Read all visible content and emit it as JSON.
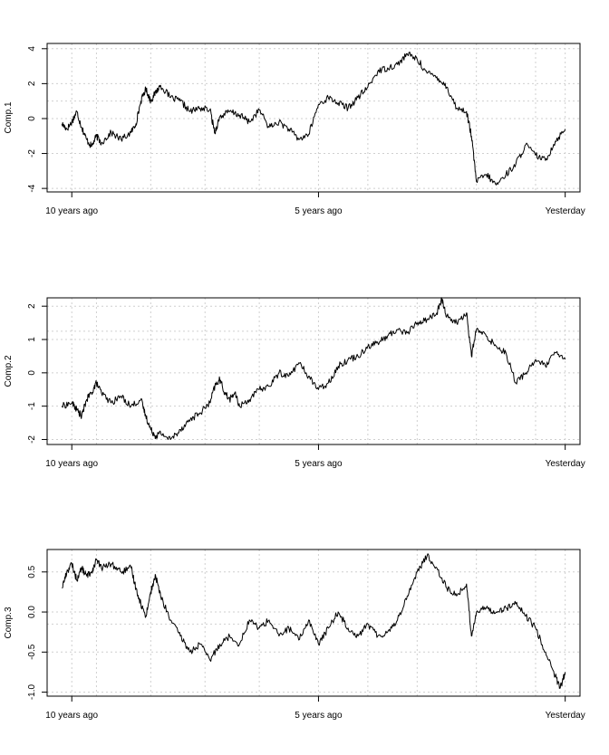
{
  "chart_data": [
    {
      "type": "line",
      "ylabel": "Comp.1",
      "ylim": [
        -4.2,
        4.3
      ],
      "yticks": [
        -4,
        -2,
        0,
        2,
        4
      ],
      "ytick_labels": [
        "-4",
        "-2",
        "0",
        "2",
        "4"
      ],
      "xlim": [
        -0.05,
        1.03
      ],
      "xticks": [
        0,
        0.5,
        1
      ],
      "xtick_labels": [
        "10 years ago",
        "5 years ago",
        "Yesterday"
      ],
      "grid": true,
      "grid_x": [
        0,
        0.05,
        0.16,
        0.27,
        0.38,
        0.5,
        0.6,
        0.7,
        0.82,
        0.94,
        1.0
      ],
      "grid_y": [
        -4,
        -2,
        0,
        1,
        2,
        4
      ],
      "x": [
        -0.02,
        -0.01,
        0.0,
        0.01,
        0.02,
        0.03,
        0.04,
        0.05,
        0.06,
        0.08,
        0.1,
        0.12,
        0.13,
        0.14,
        0.15,
        0.16,
        0.17,
        0.18,
        0.2,
        0.22,
        0.24,
        0.26,
        0.28,
        0.29,
        0.3,
        0.32,
        0.34,
        0.36,
        0.38,
        0.4,
        0.42,
        0.44,
        0.46,
        0.48,
        0.5,
        0.52,
        0.54,
        0.56,
        0.58,
        0.6,
        0.62,
        0.64,
        0.66,
        0.68,
        0.7,
        0.72,
        0.74,
        0.76,
        0.78,
        0.8,
        0.81,
        0.82,
        0.84,
        0.86,
        0.88,
        0.9,
        0.92,
        0.94,
        0.96,
        0.98,
        1.0
      ],
      "y": [
        -0.3,
        -0.6,
        -0.2,
        0.4,
        -0.5,
        -1.2,
        -1.6,
        -1.0,
        -1.4,
        -0.8,
        -1.2,
        -0.8,
        -0.3,
        1.0,
        1.7,
        1.0,
        1.5,
        1.9,
        1.2,
        1.0,
        0.4,
        0.6,
        0.5,
        -0.8,
        0.1,
        0.4,
        0.2,
        -0.2,
        0.5,
        -0.5,
        -0.2,
        -0.6,
        -1.2,
        -0.9,
        0.8,
        1.2,
        0.9,
        0.6,
        1.2,
        1.8,
        2.7,
        2.9,
        3.1,
        3.7,
        3.4,
        2.6,
        2.4,
        1.8,
        0.6,
        0.4,
        -1.0,
        -3.6,
        -3.2,
        -3.8,
        -3.2,
        -2.6,
        -1.5,
        -2.1,
        -2.4,
        -1.3,
        -0.6
      ]
    },
    {
      "type": "line",
      "ylabel": "Comp.2",
      "ylim": [
        -2.15,
        2.25
      ],
      "yticks": [
        -2,
        -1,
        0,
        1,
        2
      ],
      "ytick_labels": [
        "-2",
        "-1",
        "0",
        "1",
        "2"
      ],
      "xlim": [
        -0.05,
        1.03
      ],
      "xticks": [
        0,
        0.5,
        1
      ],
      "xtick_labels": [
        "10 years ago",
        "5 years ago",
        "Yesterday"
      ],
      "grid": true,
      "grid_x": [
        0,
        0.05,
        0.16,
        0.27,
        0.38,
        0.5,
        0.6,
        0.7,
        0.82,
        0.94,
        1.0
      ],
      "grid_y": [
        -2,
        -1,
        0,
        1,
        1.25,
        2
      ],
      "x": [
        -0.02,
        0.0,
        0.01,
        0.02,
        0.03,
        0.04,
        0.05,
        0.06,
        0.08,
        0.1,
        0.12,
        0.14,
        0.15,
        0.16,
        0.17,
        0.18,
        0.2,
        0.22,
        0.24,
        0.26,
        0.28,
        0.29,
        0.3,
        0.31,
        0.32,
        0.33,
        0.34,
        0.36,
        0.38,
        0.4,
        0.42,
        0.44,
        0.46,
        0.48,
        0.5,
        0.52,
        0.54,
        0.56,
        0.58,
        0.6,
        0.62,
        0.64,
        0.66,
        0.68,
        0.7,
        0.72,
        0.74,
        0.75,
        0.76,
        0.78,
        0.8,
        0.81,
        0.82,
        0.84,
        0.86,
        0.88,
        0.9,
        0.92,
        0.94,
        0.96,
        0.98,
        1.0
      ],
      "y": [
        -1.0,
        -0.9,
        -1.1,
        -1.3,
        -0.8,
        -0.6,
        -0.3,
        -0.6,
        -0.9,
        -0.7,
        -1.0,
        -0.8,
        -1.3,
        -1.7,
        -1.9,
        -1.8,
        -2.0,
        -1.7,
        -1.4,
        -1.2,
        -0.9,
        -0.4,
        -0.2,
        -0.6,
        -0.8,
        -0.6,
        -1.0,
        -0.8,
        -0.5,
        -0.4,
        0.0,
        -0.1,
        0.3,
        -0.1,
        -0.5,
        -0.3,
        0.2,
        0.4,
        0.5,
        0.8,
        0.9,
        1.1,
        1.3,
        1.2,
        1.5,
        1.6,
        1.8,
        2.2,
        1.7,
        1.5,
        1.8,
        0.5,
        1.3,
        1.1,
        0.8,
        0.6,
        -0.3,
        0.0,
        0.4,
        0.2,
        0.6,
        0.4
      ]
    },
    {
      "type": "line",
      "ylabel": "Comp.3",
      "ylim": [
        -1.05,
        0.78
      ],
      "yticks": [
        -1.0,
        -0.5,
        0.0,
        0.5
      ],
      "ytick_labels": [
        "-1.0",
        "-0.5",
        "0.0",
        "0.5"
      ],
      "xlim": [
        -0.05,
        1.03
      ],
      "xticks": [
        0,
        0.5,
        1
      ],
      "xtick_labels": [
        "10 years ago",
        "5 years ago",
        "Yesterday"
      ],
      "grid": true,
      "grid_x": [
        0,
        0.05,
        0.16,
        0.27,
        0.38,
        0.5,
        0.6,
        0.7,
        0.82,
        0.94,
        1.0
      ],
      "grid_y": [
        -1.0,
        -0.5,
        -0.15,
        0.0,
        0.5
      ],
      "x": [
        -0.02,
        -0.01,
        0.0,
        0.01,
        0.02,
        0.03,
        0.04,
        0.05,
        0.06,
        0.08,
        0.1,
        0.12,
        0.13,
        0.14,
        0.15,
        0.16,
        0.17,
        0.18,
        0.2,
        0.22,
        0.24,
        0.26,
        0.28,
        0.3,
        0.32,
        0.34,
        0.36,
        0.38,
        0.4,
        0.42,
        0.44,
        0.46,
        0.48,
        0.5,
        0.52,
        0.54,
        0.56,
        0.58,
        0.6,
        0.62,
        0.64,
        0.66,
        0.68,
        0.7,
        0.72,
        0.74,
        0.76,
        0.78,
        0.8,
        0.81,
        0.82,
        0.84,
        0.86,
        0.88,
        0.9,
        0.92,
        0.94,
        0.96,
        0.98,
        0.99,
        1.0
      ],
      "y": [
        0.3,
        0.5,
        0.6,
        0.4,
        0.55,
        0.45,
        0.5,
        0.65,
        0.55,
        0.6,
        0.5,
        0.55,
        0.3,
        0.1,
        -0.05,
        0.25,
        0.45,
        0.2,
        -0.1,
        -0.3,
        -0.5,
        -0.4,
        -0.6,
        -0.4,
        -0.3,
        -0.4,
        -0.1,
        -0.2,
        -0.1,
        -0.3,
        -0.2,
        -0.35,
        -0.1,
        -0.4,
        -0.2,
        0.0,
        -0.2,
        -0.3,
        -0.15,
        -0.3,
        -0.25,
        -0.1,
        0.2,
        0.5,
        0.7,
        0.55,
        0.3,
        0.2,
        0.35,
        -0.3,
        0.0,
        0.05,
        0.0,
        0.05,
        0.1,
        -0.05,
        -0.2,
        -0.5,
        -0.8,
        -0.95,
        -0.75
      ]
    }
  ]
}
